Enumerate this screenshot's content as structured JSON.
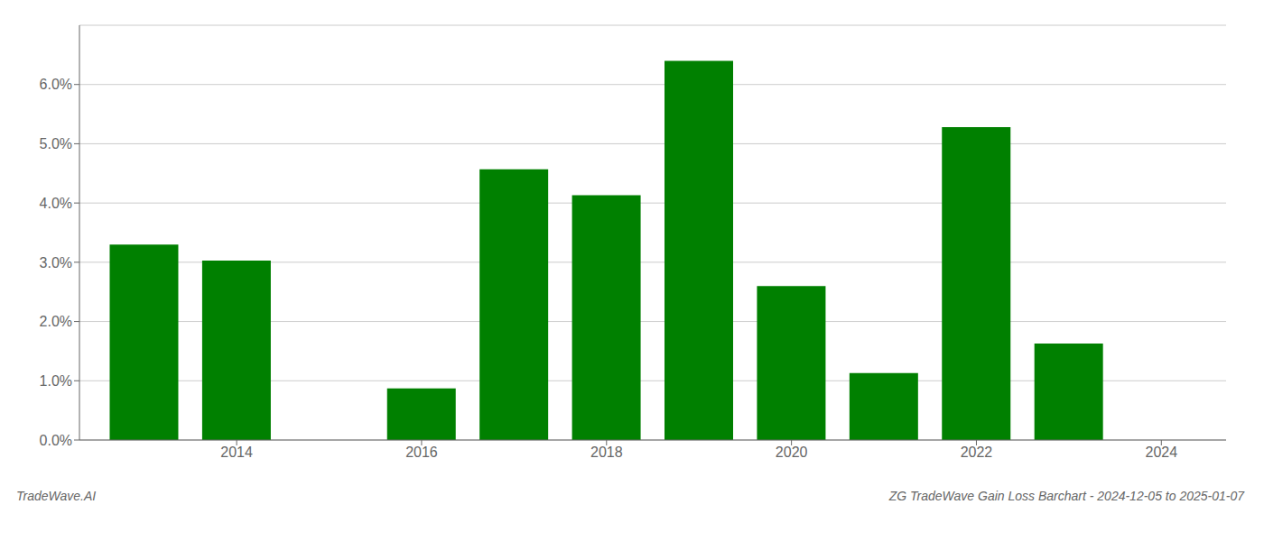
{
  "chart_data": {
    "type": "bar",
    "x": [
      2013,
      2014,
      2016,
      2017,
      2018,
      2019,
      2020,
      2021,
      2022,
      2023
    ],
    "values": [
      3.3,
      3.03,
      0.87,
      4.57,
      4.13,
      6.4,
      2.6,
      1.13,
      5.28,
      1.63
    ],
    "color": "#008000",
    "xlim": [
      2012.3,
      2024.7
    ],
    "xticks": [
      2014,
      2016,
      2018,
      2020,
      2022,
      2024
    ],
    "ylim": [
      0,
      7.0
    ],
    "yticks": [
      {
        "value": 0.0,
        "label": "0.0%"
      },
      {
        "value": 1.0,
        "label": "1.0%"
      },
      {
        "value": 2.0,
        "label": "2.0%"
      },
      {
        "value": 3.0,
        "label": "3.0%"
      },
      {
        "value": 4.0,
        "label": "4.0%"
      },
      {
        "value": 5.0,
        "label": "5.0%"
      },
      {
        "value": 6.0,
        "label": "6.0%"
      }
    ],
    "grid": true,
    "annotations": [
      "TradeWave.AI",
      "ZG TradeWave Gain Loss Barchart - 2024-12-05 to 2025-01-07"
    ]
  }
}
